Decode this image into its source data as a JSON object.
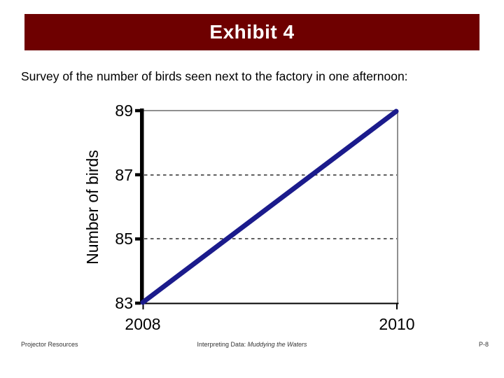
{
  "slide": {
    "title": "Exhibit 4",
    "subtitle": "Survey of the number of birds seen next to the factory in one afternoon:"
  },
  "footer": {
    "left": "Projector Resources",
    "center_prefix": "Interpreting Data: ",
    "center_italic": "Muddying the Waters",
    "right": "P-8"
  },
  "colors": {
    "header_bg": "#6e0000",
    "header_text": "#ffffff",
    "line": "#1b1b8c",
    "frame_gray": "#909090",
    "axis_black": "#000000"
  },
  "chart_data": {
    "type": "line",
    "title": "",
    "xlabel": "",
    "ylabel": "Number of birds",
    "x": [
      2008,
      2010
    ],
    "series": [
      {
        "name": "Number of birds",
        "values": [
          83,
          89
        ]
      }
    ],
    "xlim": [
      2008,
      2010
    ],
    "ylim": [
      83,
      89
    ],
    "xticks": [
      "2008",
      "2010"
    ],
    "yticks": [
      "89",
      "87",
      "85",
      "83"
    ],
    "ytick_values": [
      89,
      87,
      85,
      83
    ],
    "gridlines_dashed_at": [
      87,
      85
    ],
    "grid": "horizontal-dashed",
    "legend": false
  }
}
